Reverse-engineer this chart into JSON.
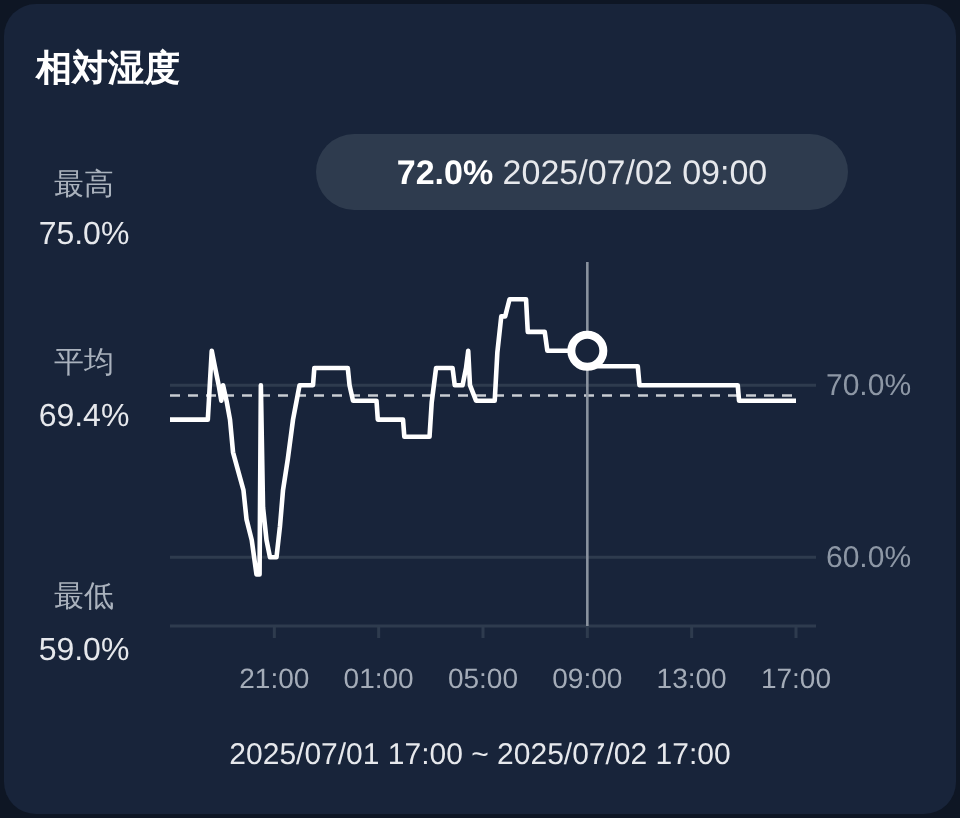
{
  "chart_data": {
    "type": "line",
    "title": "相対湿度",
    "xlabel": "2025/07/01 17:00 ~ 2025/07/02 17:00",
    "annotations": [
      "72.0% 2025/07/02 09:00",
      "最高",
      "75.0%",
      "平均",
      "69.4%",
      "最低",
      "59.0%"
    ],
    "series": [
      {
        "color": "#ffffff",
        "x": [
          "2025-07-01T17:00",
          "2025-07-01T18:27",
          "2025-07-01T18:36",
          "2025-07-01T18:43",
          "2025-07-01T18:52",
          "2025-07-01T18:58",
          "2025-07-01T19:02",
          "2025-07-01T19:10",
          "2025-07-01T19:18",
          "2025-07-01T19:25",
          "2025-07-01T19:38",
          "2025-07-01T19:49",
          "2025-07-01T19:56",
          "2025-07-01T20:08",
          "2025-07-01T20:19",
          "2025-07-01T20:26",
          "2025-07-01T20:29",
          "2025-07-01T20:34",
          "2025-07-01T20:42",
          "2025-07-01T20:50",
          "2025-07-01T21:05",
          "2025-07-01T21:13",
          "2025-07-01T21:20",
          "2025-07-01T21:31",
          "2025-07-01T21:43",
          "2025-07-01T21:58",
          "2025-07-01T22:29",
          "2025-07-01T22:32",
          "2025-07-01T23:49",
          "2025-07-01T23:53",
          "2025-07-02T00:01",
          "2025-07-02T00:55",
          "2025-07-02T00:58",
          "2025-07-02T01:56",
          "2025-07-02T01:59",
          "2025-07-02T02:57",
          "2025-07-02T03:02",
          "2025-07-02T03:12",
          "2025-07-02T03:50",
          "2025-07-02T03:55",
          "2025-07-02T04:13",
          "2025-07-02T04:21",
          "2025-07-02T04:26",
          "2025-07-02T04:30",
          "2025-07-02T04:44",
          "2025-07-02T05:27",
          "2025-07-02T05:33",
          "2025-07-02T05:42",
          "2025-07-02T05:51",
          "2025-07-02T06:01",
          "2025-07-02T06:39",
          "2025-07-02T06:43",
          "2025-07-02T07:22",
          "2025-07-02T07:28",
          "2025-07-02T09:00",
          "2025-07-02T09:03",
          "2025-07-02T10:56",
          "2025-07-02T11:00",
          "2025-07-02T14:46",
          "2025-07-02T14:49",
          "2025-07-02T17:00"
        ],
        "values": [
          68.0,
          68.0,
          72.0,
          71.1,
          70.0,
          69.1,
          70.0,
          69.1,
          68.0,
          66.1,
          64.9,
          63.9,
          62.2,
          61.0,
          59.0,
          59.0,
          70.0,
          62.9,
          61.0,
          60.0,
          60.0,
          61.8,
          63.9,
          65.7,
          68.0,
          70.0,
          70.0,
          71.0,
          71.0,
          70.0,
          69.1,
          69.1,
          68.0,
          68.0,
          67.0,
          67.0,
          69.0,
          71.0,
          71.0,
          70.0,
          70.0,
          71.0,
          72.0,
          70.0,
          69.1,
          69.1,
          71.9,
          74.0,
          74.0,
          75.0,
          75.0,
          73.1,
          73.1,
          72.0,
          72.0,
          71.1,
          71.1,
          70.0,
          70.0,
          69.1,
          69.1
        ]
      },
      {
        "type": "scatter",
        "marker": "circle",
        "color": "#ffffff",
        "x": [
          "2025-07-02T09:00"
        ],
        "values": [
          72.0
        ]
      }
    ],
    "xlim": [
      "2025-07-01T17:00",
      "2025-07-02T17:00"
    ],
    "ylim": [
      56,
      77
    ],
    "xticks": [
      {
        "value": "2025-07-01T21:00",
        "label": "21:00"
      },
      {
        "value": "2025-07-02T01:00",
        "label": "01:00"
      },
      {
        "value": "2025-07-02T05:00",
        "label": "05:00"
      },
      {
        "value": "2025-07-02T09:00",
        "label": "09:00"
      },
      {
        "value": "2025-07-02T13:00",
        "label": "13:00"
      },
      {
        "value": "2025-07-02T17:00",
        "label": "17:00"
      }
    ],
    "yticks": [
      {
        "value": 60,
        "label": "60.0%"
      },
      {
        "value": 70,
        "label": "70.0%"
      }
    ],
    "grid": "y",
    "ref_lines": [
      {
        "axis": "y",
        "value": 69.4,
        "color": "#c8ccd2",
        "line_style": "dashed"
      },
      {
        "axis": "x",
        "value": "2025-07-02T09:00",
        "color": "#8a929e",
        "line_style": "solid"
      }
    ]
  }
}
